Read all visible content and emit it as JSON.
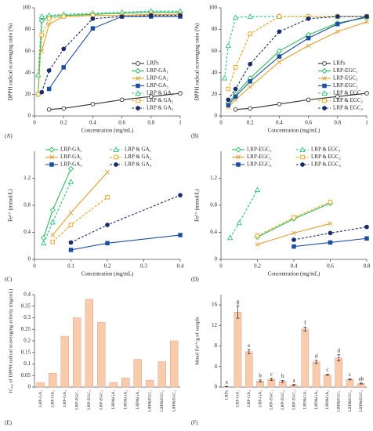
{
  "chart_data": [
    {
      "type": "line",
      "panel_label": "(A)",
      "x_label": "Concentration (mg/mL)",
      "y_label": "DPPH radical scavenging ratio (%)",
      "x": [
        0.025,
        0.05,
        0.1,
        0.2,
        0.4,
        0.6,
        0.8,
        1
      ],
      "xlim": [
        0,
        1
      ],
      "xticks": [
        0,
        0.2,
        0.4,
        0.6,
        0.8,
        1
      ],
      "ylim": [
        0,
        100
      ],
      "yticks": [
        0,
        20,
        40,
        60,
        80,
        100
      ],
      "legend": "lower right",
      "series": [
        {
          "name": "LRPs",
          "color": "#333333",
          "marker": "circle-open",
          "dash": false,
          "values": [
            null,
            null,
            6,
            7,
            11,
            15,
            18,
            21
          ]
        },
        {
          "name": "LRP-GA₁",
          "color": "#2eb85c",
          "marker": "diamond-open",
          "dash": false,
          "values": [
            20,
            88,
            92,
            93,
            94,
            95,
            96,
            96
          ]
        },
        {
          "name": "LRP-GA₂",
          "color": "#e0a030",
          "marker": "x",
          "dash": false,
          "values": [
            null,
            60,
            85,
            92,
            93,
            93,
            94,
            94
          ]
        },
        {
          "name": "LRP-GA₃",
          "color": "#1f4e9e",
          "marker": "square-filled",
          "dash": false,
          "values": [
            null,
            null,
            25,
            45,
            81,
            92,
            92,
            92
          ]
        },
        {
          "name": "LRP & GA₁",
          "color": "#2ec27e",
          "marker": "triangle-open",
          "dash": true,
          "values": [
            38,
            92,
            93,
            94,
            95,
            96,
            97,
            97
          ]
        },
        {
          "name": "LRP & GA₂",
          "color": "#e8a317",
          "marker": "square-open",
          "dash": true,
          "values": [
            20,
            75,
            90,
            92,
            93,
            93,
            94,
            94
          ]
        },
        {
          "name": "LRP & GA₃",
          "color": "#1a2c6b",
          "marker": "circle-filled",
          "dash": true,
          "values": [
            null,
            22,
            42,
            62,
            90,
            92,
            93,
            93
          ]
        }
      ]
    },
    {
      "type": "line",
      "panel_label": "(B)",
      "x_label": "Concentration (mg/mL)",
      "y_label": "DPPH radical scavenging ratio (%)",
      "x": [
        0.025,
        0.05,
        0.1,
        0.2,
        0.4,
        0.6,
        0.8,
        1
      ],
      "xlim": [
        0,
        1
      ],
      "xticks": [
        0,
        0.2,
        0.4,
        0.6,
        0.8,
        1
      ],
      "ylim": [
        0,
        100
      ],
      "yticks": [
        0,
        20,
        40,
        60,
        80,
        100
      ],
      "legend": "lower right",
      "series": [
        {
          "name": "LRPs",
          "color": "#333333",
          "marker": "circle-open",
          "dash": false,
          "values": [
            null,
            null,
            6,
            7,
            11,
            15,
            18,
            21
          ]
        },
        {
          "name": "LRP-EGC₁",
          "color": "#2eb85c",
          "marker": "diamond-open",
          "dash": false,
          "values": [
            null,
            12,
            20,
            35,
            60,
            75,
            86,
            91
          ]
        },
        {
          "name": "LRP-EGC₂",
          "color": "#e0a030",
          "marker": "x",
          "dash": false,
          "values": [
            null,
            8,
            15,
            27,
            50,
            65,
            78,
            87
          ]
        },
        {
          "name": "LRP-EGC₃",
          "color": "#1f4e9e",
          "marker": "square-filled",
          "dash": false,
          "values": [
            null,
            10,
            18,
            32,
            55,
            72,
            85,
            92
          ]
        },
        {
          "name": "LRP & EGC₁",
          "color": "#2ec27e",
          "marker": "triangle-open",
          "dash": true,
          "values": [
            35,
            65,
            91,
            92,
            92,
            92,
            92,
            92
          ]
        },
        {
          "name": "LRP & EGC₂",
          "color": "#e8a317",
          "marker": "square-open",
          "dash": true,
          "values": [
            null,
            25,
            45,
            76,
            92,
            92,
            92,
            92
          ]
        },
        {
          "name": "LRP & EGC₃",
          "color": "#1a2c6b",
          "marker": "circle-filled",
          "dash": true,
          "values": [
            null,
            15,
            25,
            48,
            78,
            90,
            92,
            92
          ]
        }
      ]
    },
    {
      "type": "line",
      "panel_label": "(C)",
      "x_label": "Concentration (mg/mL)",
      "y_label": "Fe²⁺ (mmol/L)",
      "x": [
        0.025,
        0.05,
        0.1,
        0.2,
        0.4
      ],
      "xlim": [
        0,
        0.4
      ],
      "xticks": [
        0,
        0.1,
        0.2,
        0.3,
        0.4
      ],
      "ylim": [
        0,
        1.6
      ],
      "yticks": [
        0,
        0.4,
        0.8,
        1.2
      ],
      "legend": "top",
      "series": [
        {
          "name": "LRP-GA₁",
          "color": "#2eb85c",
          "marker": "diamond-open",
          "dash": false,
          "values": [
            0.32,
            0.73,
            1.34,
            null,
            null
          ]
        },
        {
          "name": "LRP-GA₂",
          "color": "#e0a030",
          "marker": "x",
          "dash": false,
          "values": [
            null,
            0.36,
            0.69,
            1.29,
            null
          ]
        },
        {
          "name": "LRP-GA₃",
          "color": "#1f4e9e",
          "marker": "square-filled",
          "dash": false,
          "values": [
            null,
            null,
            0.14,
            0.24,
            0.36
          ]
        },
        {
          "name": "LRP & GA₁",
          "color": "#2ec27e",
          "marker": "triangle-open",
          "dash": true,
          "values": [
            0.24,
            0.55,
            1.15,
            null,
            null
          ]
        },
        {
          "name": "LRP & GA₂",
          "color": "#e8a317",
          "marker": "square-open",
          "dash": true,
          "values": [
            null,
            0.26,
            0.51,
            0.92,
            null
          ]
        },
        {
          "name": "LRP & GA₃",
          "color": "#1a2c6b",
          "marker": "circle-filled",
          "dash": true,
          "values": [
            null,
            null,
            0.25,
            0.51,
            0.95
          ]
        }
      ]
    },
    {
      "type": "line",
      "panel_label": "(D)",
      "x_label": "Concentration (mg/mL)",
      "y_label": "Fe²⁺ (mmol/L)",
      "x": [
        0.05,
        0.1,
        0.2,
        0.4,
        0.6,
        0.8
      ],
      "xlim": [
        0,
        0.8
      ],
      "xticks": [
        0,
        0.2,
        0.4,
        0.6,
        0.8
      ],
      "ylim": [
        0,
        1.6
      ],
      "yticks": [
        0,
        0.4,
        0.8,
        1.2
      ],
      "legend": "top",
      "series": [
        {
          "name": "LRP-EGC₁",
          "color": "#2eb85c",
          "marker": "diamond-open",
          "dash": false,
          "values": [
            null,
            null,
            0.33,
            0.6,
            0.83,
            null
          ]
        },
        {
          "name": "LRP-EGC₂",
          "color": "#e0a030",
          "marker": "x",
          "dash": false,
          "values": [
            null,
            null,
            0.22,
            0.39,
            0.53,
            null
          ]
        },
        {
          "name": "LRP-EGC₃",
          "color": "#1f4e9e",
          "marker": "square-filled",
          "dash": false,
          "values": [
            null,
            null,
            null,
            0.19,
            0.25,
            0.31
          ]
        },
        {
          "name": "LRP & EGC₁",
          "color": "#2ec27e",
          "marker": "triangle-open",
          "dash": true,
          "values": [
            0.32,
            0.54,
            1.03,
            null,
            null,
            null
          ]
        },
        {
          "name": "LRP & EGC₂",
          "color": "#e8a317",
          "marker": "square-open",
          "dash": true,
          "values": [
            null,
            null,
            0.35,
            0.62,
            0.85,
            null
          ]
        },
        {
          "name": "LRP & EGC₃",
          "color": "#1a2c6b",
          "marker": "circle-filled",
          "dash": true,
          "values": [
            null,
            null,
            null,
            0.29,
            0.39,
            0.48
          ]
        }
      ]
    },
    {
      "type": "bar",
      "panel_label": "(E)",
      "y_label": "IC₅₀ of DPPH radical scavenging activity (mg/mL)",
      "color": "#f8cbad",
      "categories": [
        "LRP-GA₁",
        "LRP-GA₂",
        "LRP-GA₃",
        "LRP-EGC₁",
        "LRP-EGC₂",
        "LRP-EGC₃",
        "LRP&GA₁",
        "LRP&GA₂",
        "LRP&GA₃",
        "LRP&EGC₁",
        "LRP&EGC₂",
        "LRP&EGC₃"
      ],
      "values": [
        0.02,
        0.06,
        0.22,
        0.3,
        0.38,
        0.28,
        0.02,
        0.04,
        0.12,
        0.03,
        0.11,
        0.2
      ],
      "ylim": [
        0,
        0.4
      ],
      "yticks": [
        0,
        0.05,
        0.1,
        0.15,
        0.2,
        0.25,
        0.3,
        0.35,
        0.4
      ]
    },
    {
      "type": "bar",
      "panel_label": "(F)",
      "y_label": "Mmol Fe²⁺/g of sample",
      "color": "#f8cbad",
      "categories": [
        "LRPs",
        "LRP-GA₁",
        "LRP-GA₂",
        "LRP-GA₃",
        "LRP-EGC₁",
        "LRP-EGC₂",
        "LRP-EGC₃",
        "LRP&GA₁",
        "LRP&GA₂",
        "LRP&GA₃",
        "LRP&EGC₁",
        "LRP&EGC₂",
        "LRP&EGC₃"
      ],
      "values": [
        0.1,
        14.6,
        6.9,
        1.2,
        1.5,
        1.1,
        0.4,
        11.3,
        4.9,
        2.4,
        5.7,
        1.5,
        0.7
      ],
      "errors": [
        0.05,
        1.2,
        0.4,
        0.2,
        0.2,
        0.2,
        0.1,
        0.4,
        0.3,
        0.1,
        0.6,
        0.1,
        0.1
      ],
      "letters": [
        "a",
        "g",
        "e",
        "b",
        "c",
        "b",
        "a",
        "f",
        "d",
        "c",
        "d",
        "c",
        "ab"
      ],
      "ylim": [
        0,
        18
      ],
      "yticks": [
        0,
        4,
        8,
        12,
        16
      ]
    }
  ]
}
